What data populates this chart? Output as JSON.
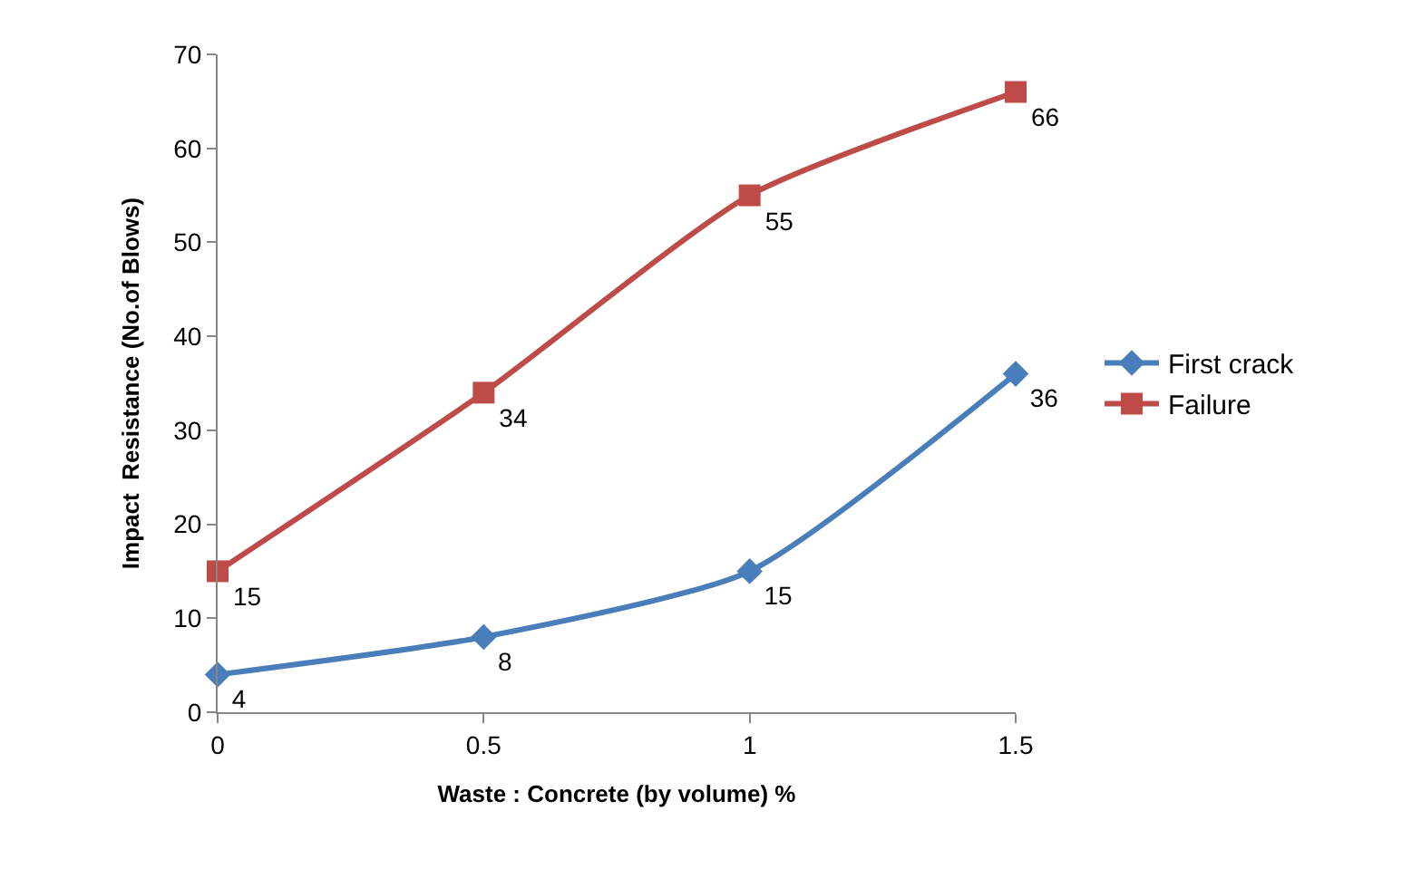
{
  "chart_data": {
    "type": "line",
    "xlabel": "Waste : Concrete (by volume) %",
    "ylabel": "Impact  Resistance (No.of Blows)",
    "x": [
      0,
      0.5,
      1,
      1.5
    ],
    "series": [
      {
        "name": "First crack",
        "color": "#4a7ebb",
        "marker": "diamond",
        "values": [
          4,
          8,
          15,
          36
        ]
      },
      {
        "name": "Failure",
        "color": "#be4b48",
        "marker": "square",
        "values": [
          15,
          34,
          55,
          66
        ]
      }
    ],
    "xlim": [
      0,
      1.5
    ],
    "xticks": [
      0,
      0.5,
      1,
      1.5
    ],
    "ylim": [
      0,
      70
    ],
    "yticks": [
      0,
      10,
      20,
      30,
      40,
      50,
      60,
      70
    ],
    "grid": false,
    "legend": "right",
    "data_labels": true,
    "line_style": "solid"
  }
}
